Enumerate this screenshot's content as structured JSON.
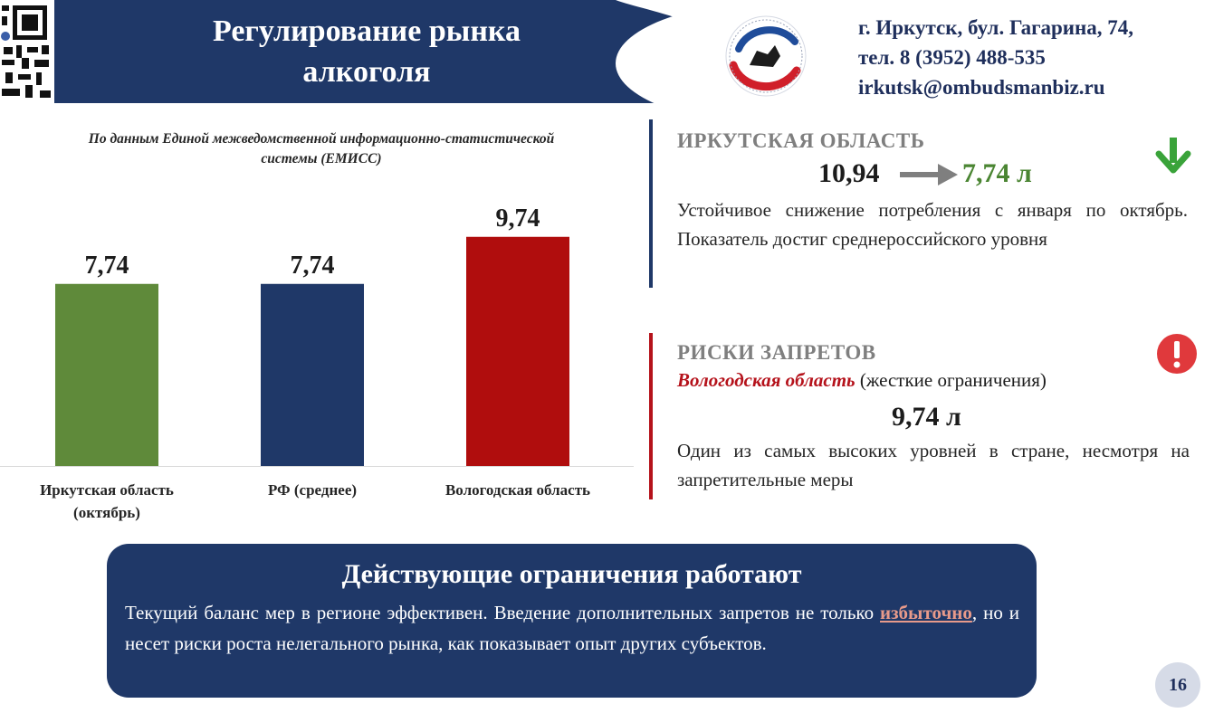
{
  "header": {
    "title_lines": [
      "Регулирование рынка",
      "алкоголя"
    ],
    "contacts": [
      "г. Иркутск, бул. Гагарина, 74,",
      "тел. 8 (3952) 488-535",
      "irkutsk@ombudsmanbiz.ru"
    ]
  },
  "chart": {
    "source_lines": [
      "По данным Единой межведомственной информационно-статистической",
      "системы (ЕМИСС)"
    ]
  },
  "chart_data": {
    "type": "bar",
    "categories": [
      [
        "Иркутская область",
        "(октябрь)"
      ],
      [
        "РФ (среднее)"
      ],
      [
        "Вологодская область"
      ]
    ],
    "values": [
      7.74,
      7.74,
      9.74
    ],
    "value_labels": [
      "7,74",
      "7,74",
      "9,74"
    ],
    "colors": [
      "#5f8a3a",
      "#1f3868",
      "#b00d0d"
    ],
    "ylim": [
      0,
      12.5
    ],
    "grid": false,
    "legend": "none"
  },
  "irkutsk": {
    "heading": "ИРКУТСКАЯ ОБЛАСТЬ",
    "old_value": "10,94",
    "new_value": "7,74 л",
    "text": "Устойчивое снижение потребления с января по октябрь. Показатель достиг среднероссийского уровня"
  },
  "risks": {
    "heading": "РИСКИ ЗАПРЕТОВ",
    "region": "Вологодская область",
    "note": "(жесткие ограничения)",
    "value": "9,74 л",
    "text": "Один из самых высоких уровней в стране, несмотря на запретительные меры"
  },
  "conclusion": {
    "title": "Действующие ограничения работают",
    "text_before": "Текущий баланс мер в регионе эффективен. Введение дополнительных запретов не только",
    "emphasis": "избыточно",
    "text_after": ", но и несет риски роста нелегального рынка, как показывает опыт других субъектов."
  },
  "page_number": "16",
  "icons": {
    "qr": "qr-code-icon",
    "logo": "ombudsman-logo",
    "trend": "arrow-right-icon",
    "down": "arrow-down-icon",
    "alert": "exclamation-icon"
  },
  "colors": {
    "navy": "#1f3868",
    "green": "#4a8532",
    "red": "#b5121b"
  }
}
